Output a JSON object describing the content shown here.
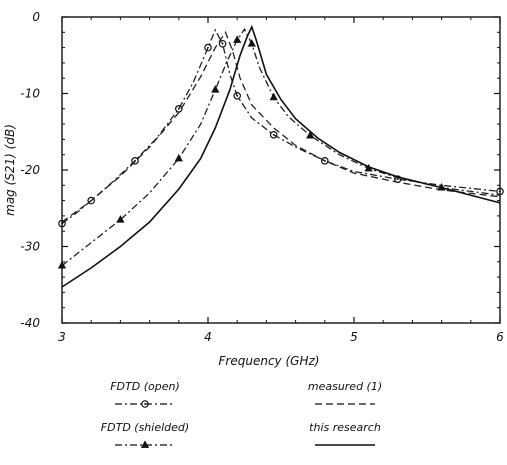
{
  "chart_data": {
    "type": "line",
    "title": "",
    "xlabel": "Frequency (GHz)",
    "ylabel": "mag (S21) (dB)",
    "xlim": [
      3,
      6
    ],
    "ylim": [
      -40,
      0
    ],
    "xticks": [
      3,
      4,
      5,
      6
    ],
    "yticks": [
      0,
      -10,
      -20,
      -30,
      -40
    ],
    "xtick_labels": [
      "3",
      "4",
      "5",
      "6"
    ],
    "ytick_labels": [
      "0",
      "-10",
      "-20",
      "-30",
      "-40"
    ],
    "grid": false,
    "legend_position": "bottom",
    "series": [
      {
        "name": "FDTD (open)",
        "style": "dash-dot",
        "marker": "circle",
        "color": "#222222",
        "x": [
          3.0,
          3.1,
          3.2,
          3.35,
          3.5,
          3.65,
          3.8,
          3.9,
          4.0,
          4.05,
          4.1,
          4.15,
          4.2,
          4.3,
          4.45,
          4.6,
          4.8,
          5.0,
          5.3,
          5.6,
          6.0
        ],
        "y": [
          -27.0,
          -25.6,
          -24.0,
          -21.5,
          -18.8,
          -15.8,
          -12.0,
          -8.5,
          -4.0,
          -1.7,
          -3.5,
          -7.5,
          -10.3,
          -13.2,
          -15.4,
          -17.0,
          -18.8,
          -20.2,
          -21.2,
          -22.0,
          -22.8
        ]
      },
      {
        "name": "measured (1)",
        "style": "dashed",
        "marker": "none",
        "color": "#222222",
        "x": [
          3.0,
          3.2,
          3.4,
          3.6,
          3.8,
          3.95,
          4.05,
          4.12,
          4.17,
          4.22,
          4.3,
          4.45,
          4.6,
          4.8,
          5.0,
          5.3,
          5.6,
          6.0
        ],
        "y": [
          -26.8,
          -24.0,
          -20.8,
          -17.0,
          -12.5,
          -7.8,
          -4.0,
          -2.0,
          -4.5,
          -8.0,
          -11.5,
          -14.5,
          -16.8,
          -18.8,
          -20.4,
          -21.6,
          -22.6,
          -23.5
        ]
      },
      {
        "name": "FDTD (shielded)",
        "style": "dash-dot",
        "marker": "triangle",
        "color": "#222222",
        "x": [
          3.0,
          3.2,
          3.4,
          3.6,
          3.8,
          3.95,
          4.05,
          4.13,
          4.2,
          4.25,
          4.3,
          4.35,
          4.45,
          4.55,
          4.7,
          4.9,
          5.1,
          5.3,
          5.6,
          6.0
        ],
        "y": [
          -32.5,
          -29.5,
          -26.5,
          -23.0,
          -18.5,
          -14.0,
          -9.5,
          -5.8,
          -3.0,
          -1.6,
          -3.5,
          -6.5,
          -10.5,
          -13.0,
          -15.5,
          -18.0,
          -19.8,
          -21.0,
          -22.3,
          -23.3
        ]
      },
      {
        "name": "this research",
        "style": "solid",
        "marker": "none",
        "color": "#111111",
        "x": [
          3.0,
          3.2,
          3.4,
          3.6,
          3.8,
          3.95,
          4.05,
          4.15,
          4.22,
          4.27,
          4.3,
          4.33,
          4.4,
          4.5,
          4.6,
          4.75,
          4.9,
          5.1,
          5.3,
          5.6,
          6.0
        ],
        "y": [
          -35.3,
          -32.8,
          -30.0,
          -26.8,
          -22.5,
          -18.5,
          -14.5,
          -9.5,
          -5.0,
          -2.5,
          -1.3,
          -3.0,
          -7.5,
          -10.8,
          -13.3,
          -15.8,
          -17.7,
          -19.6,
          -20.9,
          -22.3,
          -24.3
        ]
      }
    ],
    "legend": [
      {
        "label": "FDTD (open)",
        "style": "dash-dot",
        "marker": "circle"
      },
      {
        "label": "measured (1)",
        "style": "dashed",
        "marker": "none"
      },
      {
        "label": "FDTD (shielded)",
        "style": "dash-dot",
        "marker": "triangle"
      },
      {
        "label": "this research",
        "style": "solid",
        "marker": "none"
      }
    ]
  }
}
